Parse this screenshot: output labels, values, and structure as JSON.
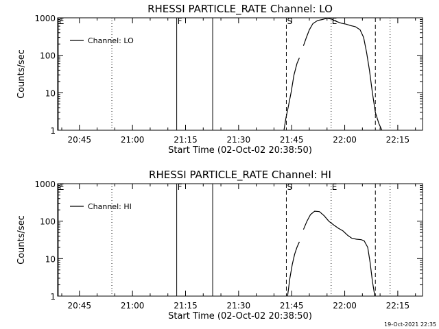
{
  "timestamp": "19-Oct-2021 22:35",
  "chart_data": [
    {
      "type": "line",
      "title": "RHESSI PARTICLE_RATE Channel: LO",
      "xlabel": "Start Time (02-Oct-02 20:38:50)",
      "ylabel": "Counts/sec",
      "y_scale": "log",
      "xlim": [
        "20:38:50",
        "22:22:00"
      ],
      "ylim": [
        1,
        1000
      ],
      "x_ticks": [
        "20:45",
        "21:00",
        "21:15",
        "21:30",
        "21:45",
        "22:00",
        "22:15"
      ],
      "y_ticks": [
        {
          "value": 1,
          "label": "1"
        },
        {
          "value": 10,
          "label": "10"
        },
        {
          "value": 100,
          "label": "100"
        },
        {
          "value": 1000,
          "label": "1000"
        }
      ],
      "legend": {
        "label": "Channel: LO",
        "position": "top-left"
      },
      "markers": [
        {
          "time": "20:39:00",
          "style": "solid",
          "label": "E"
        },
        {
          "time": "20:54:10",
          "style": "dotted",
          "label": ""
        },
        {
          "time": "21:12:30",
          "style": "solid",
          "label": "F"
        },
        {
          "time": "21:22:40",
          "style": "solid",
          "label": ""
        },
        {
          "time": "21:43:30",
          "style": "dashed",
          "label": "S"
        },
        {
          "time": "21:56:10",
          "style": "dotted",
          "label": "E"
        },
        {
          "time": "22:08:40",
          "style": "dashed",
          "label": ""
        },
        {
          "time": "22:12:50",
          "style": "dotted",
          "label": ""
        }
      ],
      "series": [
        {
          "segments": [
            [
              {
                "t": "21:42:50",
                "y": 1
              },
              {
                "t": "21:43:20",
                "y": 2
              },
              {
                "t": "21:44:00",
                "y": 4
              },
              {
                "t": "21:44:50",
                "y": 10
              },
              {
                "t": "21:45:40",
                "y": 30
              },
              {
                "t": "21:46:30",
                "y": 60
              },
              {
                "t": "21:47:10",
                "y": 85
              }
            ],
            [
              {
                "t": "21:48:20",
                "y": 180
              },
              {
                "t": "21:49:10",
                "y": 300
              },
              {
                "t": "21:50:00",
                "y": 480
              },
              {
                "t": "21:51:00",
                "y": 700
              },
              {
                "t": "21:52:20",
                "y": 850
              },
              {
                "t": "21:53:40",
                "y": 900
              },
              {
                "t": "21:55:00",
                "y": 980
              },
              {
                "t": "21:56:20",
                "y": 920
              },
              {
                "t": "21:57:40",
                "y": 800
              },
              {
                "t": "21:59:00",
                "y": 720
              },
              {
                "t": "22:00:20",
                "y": 680
              },
              {
                "t": "22:01:40",
                "y": 620
              },
              {
                "t": "22:03:00",
                "y": 580
              },
              {
                "t": "22:04:20",
                "y": 480
              },
              {
                "t": "22:05:20",
                "y": 300
              },
              {
                "t": "22:06:10",
                "y": 120
              },
              {
                "t": "22:07:00",
                "y": 40
              },
              {
                "t": "22:07:50",
                "y": 10
              },
              {
                "t": "22:08:40",
                "y": 3
              },
              {
                "t": "22:09:40",
                "y": 1.5
              },
              {
                "t": "22:10:30",
                "y": 1
              }
            ]
          ]
        }
      ]
    },
    {
      "type": "line",
      "title": "RHESSI PARTICLE_RATE Channel: HI",
      "xlabel": "Start Time (02-Oct-02 20:38:50)",
      "ylabel": "Counts/sec",
      "y_scale": "log",
      "xlim": [
        "20:38:50",
        "22:22:00"
      ],
      "ylim": [
        1,
        1000
      ],
      "x_ticks": [
        "20:45",
        "21:00",
        "21:15",
        "21:30",
        "21:45",
        "22:00",
        "22:15"
      ],
      "y_ticks": [
        {
          "value": 1,
          "label": "1"
        },
        {
          "value": 10,
          "label": "10"
        },
        {
          "value": 100,
          "label": "100"
        },
        {
          "value": 1000,
          "label": "1000"
        }
      ],
      "legend": {
        "label": "Channel: HI",
        "position": "top-left"
      },
      "markers": [
        {
          "time": "20:39:00",
          "style": "solid",
          "label": "E"
        },
        {
          "time": "20:54:10",
          "style": "dotted",
          "label": ""
        },
        {
          "time": "21:12:30",
          "style": "solid",
          "label": "F"
        },
        {
          "time": "21:22:40",
          "style": "solid",
          "label": ""
        },
        {
          "time": "21:43:30",
          "style": "dashed",
          "label": "S"
        },
        {
          "time": "21:56:10",
          "style": "dotted",
          "label": "E"
        },
        {
          "time": "22:08:40",
          "style": "dashed",
          "label": ""
        },
        {
          "time": "22:12:50",
          "style": "dotted",
          "label": ""
        }
      ],
      "series": [
        {
          "segments": [
            [
              {
                "t": "21:43:50",
                "y": 1
              },
              {
                "t": "21:44:30",
                "y": 3
              },
              {
                "t": "21:45:10",
                "y": 7
              },
              {
                "t": "21:45:50",
                "y": 13
              },
              {
                "t": "21:46:30",
                "y": 20
              },
              {
                "t": "21:47:10",
                "y": 28
              }
            ],
            [
              {
                "t": "21:48:20",
                "y": 60
              },
              {
                "t": "21:49:20",
                "y": 100
              },
              {
                "t": "21:50:20",
                "y": 150
              },
              {
                "t": "21:51:30",
                "y": 185
              },
              {
                "t": "21:52:50",
                "y": 180
              },
              {
                "t": "21:54:10",
                "y": 140
              },
              {
                "t": "21:55:30",
                "y": 100
              },
              {
                "t": "21:56:50",
                "y": 80
              },
              {
                "t": "21:58:10",
                "y": 65
              },
              {
                "t": "21:59:30",
                "y": 55
              },
              {
                "t": "22:00:50",
                "y": 42
              },
              {
                "t": "22:02:00",
                "y": 35
              },
              {
                "t": "22:03:20",
                "y": 33
              },
              {
                "t": "22:04:40",
                "y": 32
              },
              {
                "t": "22:05:30",
                "y": 30
              },
              {
                "t": "22:06:30",
                "y": 20
              },
              {
                "t": "22:07:10",
                "y": 8
              },
              {
                "t": "22:07:50",
                "y": 2.5
              },
              {
                "t": "22:08:30",
                "y": 1
              }
            ]
          ]
        }
      ]
    }
  ]
}
